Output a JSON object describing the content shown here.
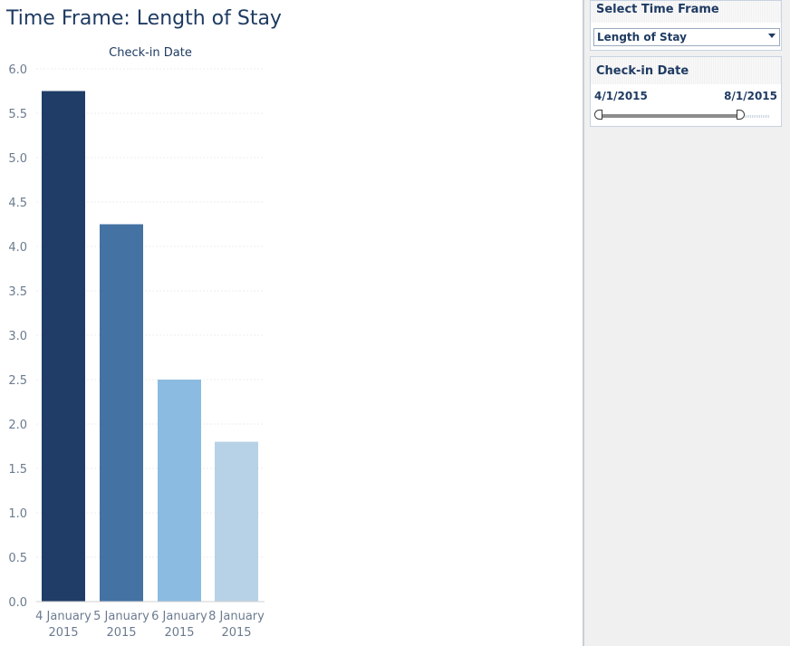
{
  "header": {
    "title": "Time Frame: Length of Stay"
  },
  "sidebar": {
    "time_frame_filter": {
      "title": "Select Time Frame",
      "selected": "Length of Stay"
    },
    "checkin_filter": {
      "title": "Check-in Date",
      "start": "4/1/2015",
      "end": "8/1/2015"
    }
  },
  "chart_data": {
    "type": "bar",
    "title": "Check-in Date",
    "xlabel": "",
    "ylabel": "",
    "categories": [
      "4 January 2015",
      "5 January 2015",
      "6 January 2015",
      "8 January 2015"
    ],
    "category_lines": [
      [
        "4 January",
        "2015"
      ],
      [
        "5 January",
        "2015"
      ],
      [
        "6 January",
        "2015"
      ],
      [
        "8 January",
        "2015"
      ]
    ],
    "values": [
      5.75,
      4.25,
      2.5,
      1.8
    ],
    "ylim": [
      0,
      6
    ],
    "yticks": [
      "0.0",
      "0.5",
      "1.0",
      "1.5",
      "2.0",
      "2.5",
      "3.0",
      "3.5",
      "4.0",
      "4.5",
      "5.0",
      "5.5",
      "6.0"
    ],
    "bar_colors": [
      "#1f3d66",
      "#4472a3",
      "#8bbbe0",
      "#b7d2e6"
    ],
    "grid": true,
    "legend": "none"
  }
}
